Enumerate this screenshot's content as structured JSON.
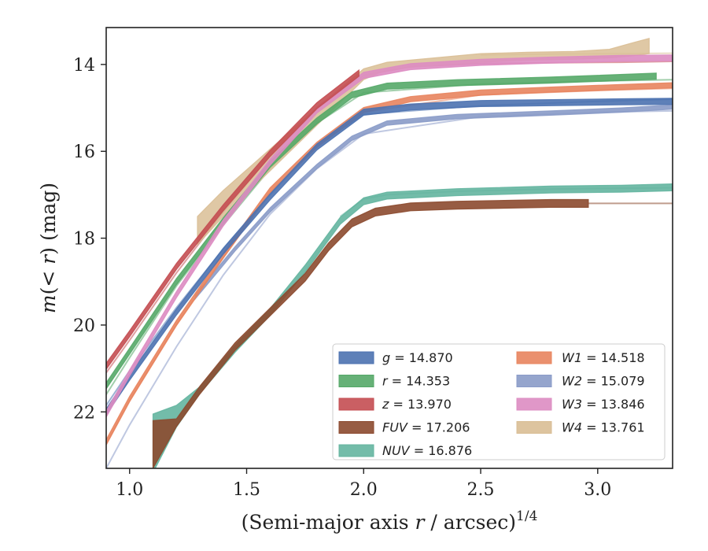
{
  "chart_data": {
    "type": "line",
    "title": "",
    "xlabel_main": "(Semi-major axis ",
    "xlabel_var": "r",
    "xlabel_tail": " / arcsec)",
    "xlabel_sup": "1/4",
    "ylabel_main_m": "m",
    "ylabel_main_rest": "(< ",
    "ylabel_var": "r",
    "ylabel_tail": ") (mag)",
    "xlim": [
      0.9,
      3.32
    ],
    "ylim": [
      23.3,
      13.15
    ],
    "y_inverted": true,
    "x_ticks": [
      1.0,
      1.5,
      2.0,
      2.5,
      3.0
    ],
    "x_tick_labels": [
      "1.0",
      "1.5",
      "2.0",
      "2.5",
      "3.0"
    ],
    "y_ticks": [
      14,
      16,
      18,
      20,
      22
    ],
    "y_tick_labels": [
      "14",
      "16",
      "18",
      "20",
      "22"
    ],
    "grid": false,
    "legend_position": "lower-right",
    "series": [
      {
        "key": "g",
        "name": "g = 14.870",
        "color": "#4c72b0",
        "band": 0.07,
        "x": [
          0.9,
          1.0,
          1.2,
          1.4,
          1.6,
          1.8,
          2.0,
          2.2,
          2.5,
          2.8,
          3.1,
          3.32
        ],
        "y": [
          22.0,
          21.2,
          19.7,
          18.3,
          17.05,
          15.9,
          15.1,
          14.98,
          14.9,
          14.88,
          14.86,
          14.85
        ],
        "extended": {
          "x": [
            0.9,
            1.0,
            1.2,
            1.4,
            1.6,
            1.8,
            2.0,
            2.5,
            3.0,
            3.32
          ],
          "y": [
            21.85,
            21.05,
            19.6,
            18.25,
            17.0,
            15.85,
            15.15,
            14.95,
            14.85,
            14.8
          ]
        }
      },
      {
        "key": "r",
        "name": "r = 14.353",
        "color": "#55a868",
        "band": 0.07,
        "x": [
          0.9,
          1.0,
          1.2,
          1.4,
          1.6,
          1.8,
          1.95,
          2.1,
          2.4,
          2.8,
          3.25
        ],
        "y": [
          21.4,
          20.6,
          19.0,
          17.6,
          16.3,
          15.3,
          14.7,
          14.5,
          14.42,
          14.36,
          14.27
        ],
        "extended": {
          "x": [
            0.9,
            1.0,
            1.2,
            1.4,
            1.6,
            1.8,
            2.0,
            2.5,
            3.0,
            3.32
          ],
          "y": [
            21.6,
            20.75,
            19.1,
            17.7,
            16.4,
            15.35,
            14.65,
            14.45,
            14.38,
            14.35
          ]
        }
      },
      {
        "key": "z",
        "name": "z = 13.970",
        "color": "#c44e52",
        "band": 0.07,
        "x": [
          0.9,
          1.0,
          1.2,
          1.4,
          1.6,
          1.8,
          1.98
        ],
        "y": [
          20.95,
          20.2,
          18.65,
          17.3,
          16.05,
          14.95,
          14.2
        ],
        "extended": {
          "x": [
            0.9,
            1.0,
            1.2,
            1.4,
            1.6,
            1.8,
            2.0,
            2.2,
            2.5,
            2.8,
            3.1,
            3.32
          ],
          "y": [
            21.1,
            20.35,
            18.8,
            17.4,
            16.1,
            15.0,
            14.25,
            14.05,
            13.98,
            13.96,
            13.95,
            13.93
          ]
        }
      },
      {
        "key": "FUV",
        "name": "FUV = 17.206",
        "color": "#8c4a2f",
        "band": 0.09,
        "x": [
          1.1,
          1.2,
          1.3,
          1.45,
          1.6,
          1.75,
          1.85,
          1.95,
          2.05,
          2.2,
          2.4,
          2.6,
          2.8,
          2.96
        ],
        "y": [
          23.0,
          22.25,
          21.5,
          20.5,
          19.7,
          18.9,
          18.2,
          17.65,
          17.4,
          17.28,
          17.24,
          17.22,
          17.2,
          17.2
        ],
        "extended": {
          "x": [
            2.96,
            3.32
          ],
          "y": [
            17.2,
            17.2
          ]
        }
      },
      {
        "key": "NUV",
        "name": "NUV = 16.876",
        "color": "#64b5a0",
        "band": 0.08,
        "x": [
          1.1,
          1.2,
          1.3,
          1.45,
          1.6,
          1.75,
          1.9,
          2.0,
          2.1,
          2.4,
          2.8,
          3.1,
          3.32
        ],
        "y": [
          22.8,
          22.1,
          21.5,
          20.55,
          19.7,
          18.7,
          17.6,
          17.15,
          17.02,
          16.94,
          16.88,
          16.86,
          16.83
        ],
        "extended": {
          "x": [
            1.9,
            2.0,
            2.1,
            2.4,
            2.8,
            3.1,
            3.32
          ],
          "y": [
            17.5,
            17.1,
            17.0,
            16.92,
            16.87,
            16.85,
            16.84
          ]
        }
      },
      {
        "key": "W1",
        "name": "W1 = 14.518",
        "color": "#e8845e",
        "band": 0.06,
        "x": [
          0.9,
          1.0,
          1.2,
          1.4,
          1.6,
          1.8,
          2.0,
          2.2,
          2.5,
          2.8,
          3.1,
          3.32
        ],
        "y": [
          22.7,
          21.7,
          19.95,
          18.4,
          16.9,
          15.85,
          15.05,
          14.8,
          14.65,
          14.58,
          14.52,
          14.48
        ],
        "extended": {
          "x": [
            0.9,
            1.0,
            1.2,
            1.4,
            1.6,
            1.8,
            2.0,
            2.5,
            3.0,
            3.32
          ],
          "y": [
            22.75,
            21.75,
            20.0,
            18.45,
            16.95,
            15.9,
            15.1,
            14.7,
            14.6,
            14.55
          ]
        }
      },
      {
        "key": "W2",
        "name": "W2 = 15.079",
        "color": "#8a9bc8",
        "band": 0.05,
        "x": [
          1.28,
          1.35,
          1.45,
          1.6,
          1.8,
          1.95,
          2.1,
          2.4,
          2.8,
          3.1,
          3.32
        ],
        "y": [
          19.35,
          18.9,
          18.25,
          17.35,
          16.35,
          15.7,
          15.35,
          15.2,
          15.12,
          15.05,
          14.98
        ],
        "extended": {
          "x": [
            0.9,
            1.0,
            1.2,
            1.4,
            1.6,
            1.8,
            2.0,
            2.5,
            3.0,
            3.32
          ],
          "y": [
            23.3,
            22.3,
            20.5,
            18.85,
            17.45,
            16.4,
            15.6,
            15.2,
            15.1,
            15.07
          ]
        }
      },
      {
        "key": "W3",
        "name": "W3 = 13.846",
        "color": "#dd8cc2",
        "band": 0.07,
        "x": [
          0.9,
          1.0,
          1.2,
          1.4,
          1.6,
          1.8,
          2.0,
          2.2,
          2.5,
          2.8,
          3.1,
          3.32
        ],
        "y": [
          22.05,
          21.1,
          19.3,
          17.65,
          16.25,
          15.05,
          14.25,
          14.05,
          13.95,
          13.9,
          13.86,
          13.85
        ],
        "extended": null
      },
      {
        "key": "W4",
        "name": "W4 = 13.761",
        "color": "#d9be95",
        "band": null,
        "x": [
          1.29,
          1.4,
          1.6,
          1.8,
          2.0,
          2.1,
          2.3,
          2.5,
          2.7,
          2.9,
          3.05,
          3.15,
          3.22
        ],
        "y_top": [
          17.5,
          16.9,
          15.95,
          15.0,
          14.1,
          13.95,
          13.85,
          13.75,
          13.72,
          13.7,
          13.65,
          13.5,
          13.4
        ],
        "y_bot": [
          18.15,
          17.5,
          16.45,
          15.4,
          14.35,
          14.12,
          14.02,
          13.95,
          13.9,
          13.88,
          13.85,
          13.8,
          13.75
        ],
        "extended": {
          "x": [
            2.5,
            2.8,
            3.1,
            3.32
          ],
          "y": [
            13.78,
            13.76,
            13.75,
            13.74
          ]
        }
      }
    ],
    "legend_columns": [
      [
        "g",
        "r",
        "z",
        "FUV",
        "NUV"
      ],
      [
        "W1",
        "W2",
        "W3",
        "W4"
      ]
    ],
    "legend_labels": {
      "g": {
        "var": "g",
        "val": " = 14.870"
      },
      "r": {
        "var": "r",
        "val": " = 14.353"
      },
      "z": {
        "var": "z",
        "val": " = 13.970"
      },
      "FUV": {
        "var": "FUV",
        "val": " = 17.206"
      },
      "NUV": {
        "var": "NUV",
        "val": " = 16.876"
      },
      "W1": {
        "var": "W1",
        "val": " = 14.518"
      },
      "W2": {
        "var": "W2",
        "val": " = 15.079"
      },
      "W3": {
        "var": "W3",
        "val": " = 13.846"
      },
      "W4": {
        "var": "W4",
        "val": " = 13.761"
      }
    }
  }
}
